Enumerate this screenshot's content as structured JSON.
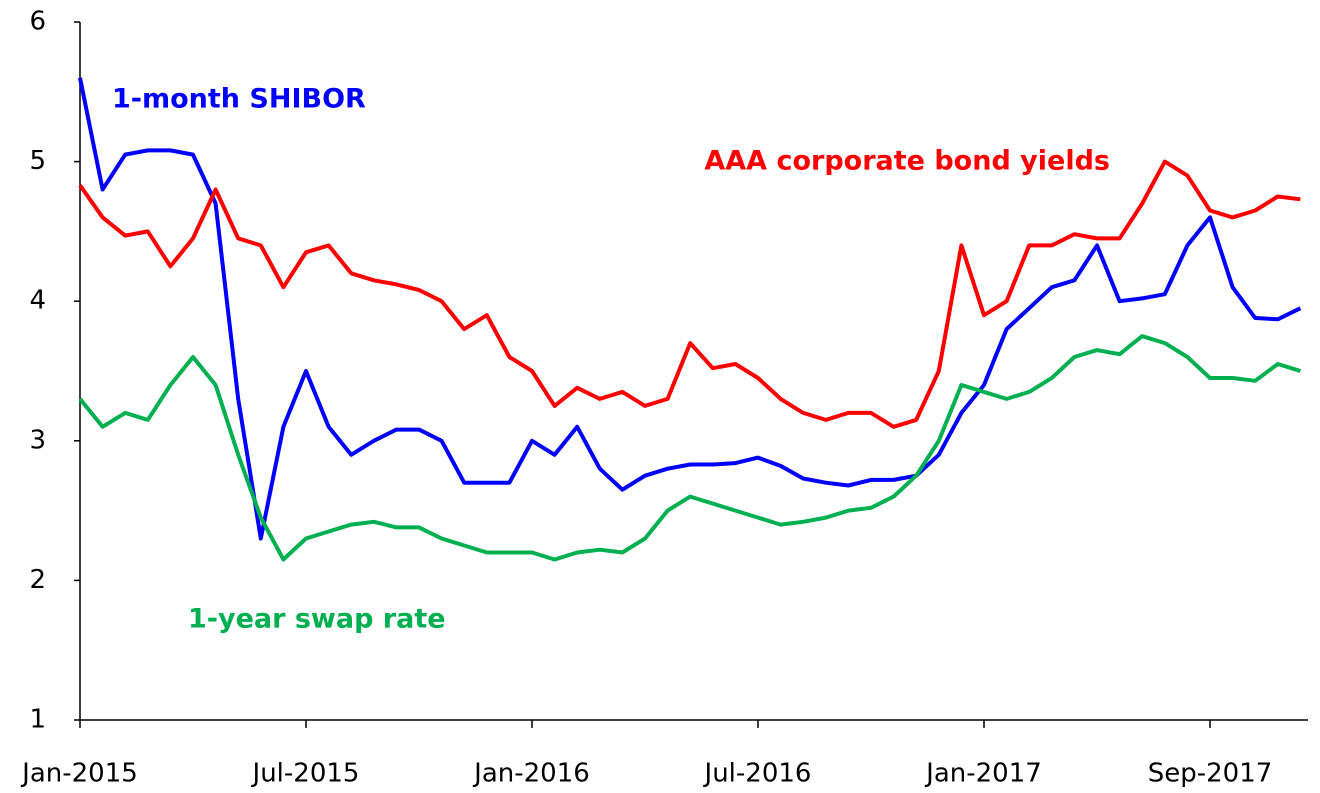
{
  "chart_data": {
    "type": "line",
    "categories": [
      "Jan-2015",
      null,
      null,
      null,
      null,
      null,
      null,
      null,
      null,
      null,
      "Jul-2015",
      null,
      null,
      null,
      null,
      null,
      null,
      null,
      null,
      null,
      "Jan-2016",
      null,
      null,
      null,
      null,
      null,
      null,
      null,
      null,
      null,
      "Jul-2016",
      null,
      null,
      null,
      null,
      null,
      null,
      null,
      null,
      null,
      "Jan-2017",
      null,
      null,
      null,
      null,
      null,
      null,
      null,
      null,
      null,
      "Sep-2017",
      null,
      null,
      null,
      null
    ],
    "series": [
      {
        "name": "1-month SHIBOR",
        "color": "#0000ff",
        "values": [
          5.6,
          4.8,
          5.05,
          5.08,
          5.08,
          5.05,
          4.7,
          3.3,
          2.3,
          3.1,
          3.5,
          3.1,
          2.9,
          3.0,
          3.08,
          3.08,
          3.0,
          2.7,
          2.7,
          2.7,
          3.0,
          2.9,
          3.1,
          2.8,
          2.65,
          2.75,
          2.8,
          2.83,
          2.83,
          2.84,
          2.88,
          2.82,
          2.73,
          2.7,
          2.68,
          2.72,
          2.72,
          2.75,
          2.9,
          3.2,
          3.4,
          3.8,
          3.95,
          4.1,
          4.15,
          4.4,
          4.0,
          4.02,
          4.05,
          4.4,
          4.6,
          4.1,
          3.88,
          3.87,
          3.95
        ]
      },
      {
        "name": "AAA corporate bond yields",
        "color": "#ff0000",
        "values": [
          4.83,
          4.6,
          4.47,
          4.5,
          4.25,
          4.45,
          4.8,
          4.45,
          4.4,
          4.1,
          4.35,
          4.4,
          4.2,
          4.15,
          4.12,
          4.08,
          4.0,
          3.8,
          3.9,
          3.6,
          3.5,
          3.25,
          3.38,
          3.3,
          3.35,
          3.25,
          3.3,
          3.7,
          3.52,
          3.55,
          3.45,
          3.3,
          3.2,
          3.15,
          3.2,
          3.2,
          3.1,
          3.15,
          3.5,
          4.4,
          3.9,
          4.0,
          4.4,
          4.4,
          4.48,
          4.45,
          4.45,
          4.7,
          5.0,
          4.9,
          4.65,
          4.6,
          4.65,
          4.75,
          4.73
        ]
      },
      {
        "name": "1-year swap rate",
        "color": "#00b050",
        "values": [
          3.3,
          3.1,
          3.2,
          3.15,
          3.4,
          3.6,
          3.4,
          2.9,
          2.45,
          2.15,
          2.3,
          2.35,
          2.4,
          2.42,
          2.38,
          2.38,
          2.3,
          2.25,
          2.2,
          2.2,
          2.2,
          2.15,
          2.2,
          2.22,
          2.2,
          2.3,
          2.5,
          2.6,
          2.55,
          2.5,
          2.45,
          2.4,
          2.42,
          2.45,
          2.5,
          2.52,
          2.6,
          2.75,
          3.0,
          3.4,
          3.35,
          3.3,
          3.35,
          3.45,
          3.6,
          3.65,
          3.62,
          3.75,
          3.7,
          3.6,
          3.45,
          3.45,
          3.43,
          3.55,
          3.5
        ]
      }
    ],
    "ylim": [
      1,
      6
    ],
    "yticks": [
      1,
      2,
      3,
      4,
      5,
      6
    ],
    "grid": false
  }
}
